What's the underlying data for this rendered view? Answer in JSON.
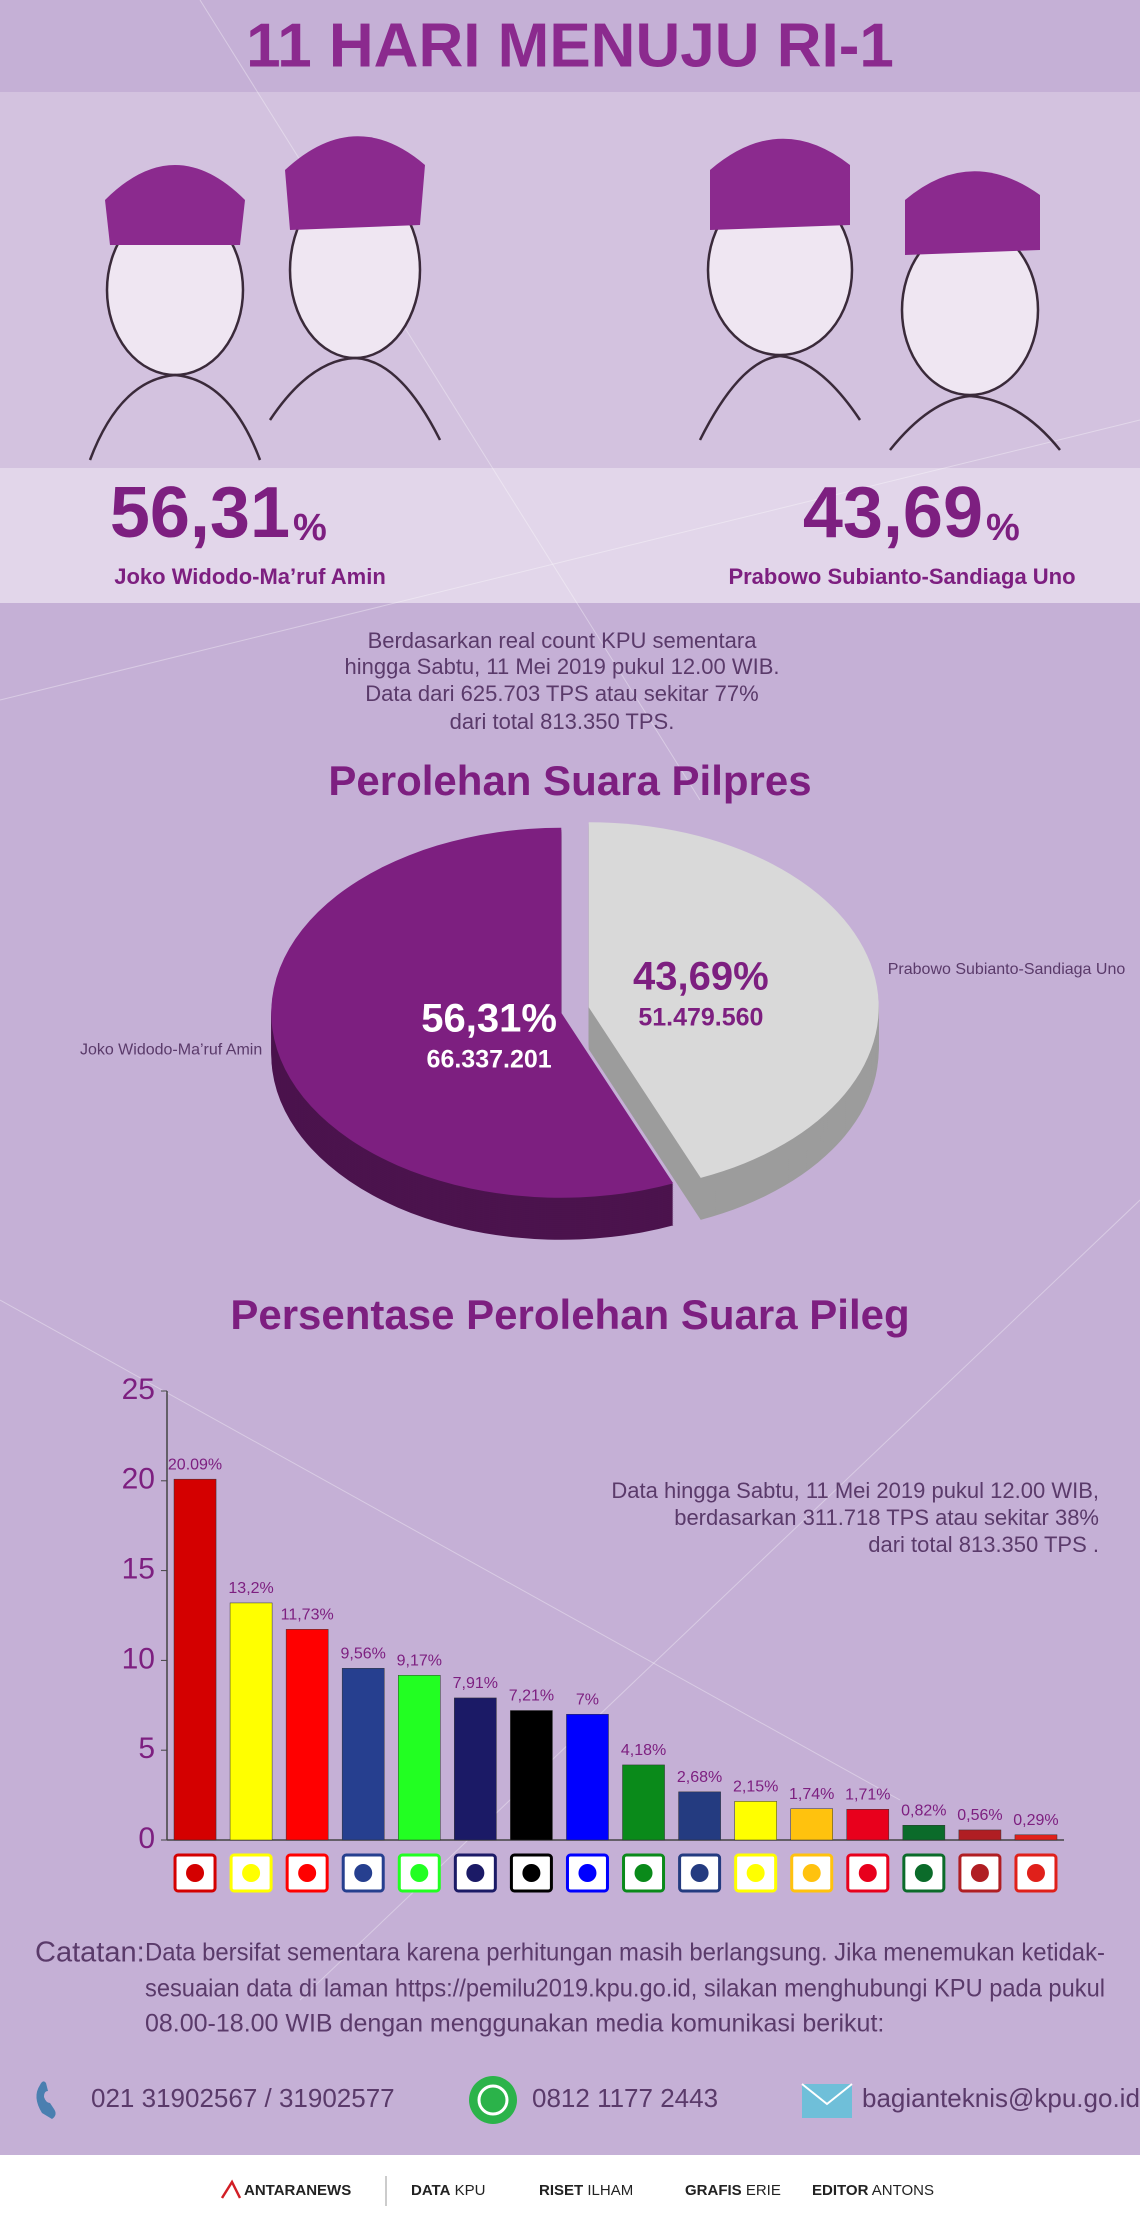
{
  "title": "11 HARI MENUJU RI-1",
  "candidates": [
    {
      "number": "56,31",
      "unit": "%",
      "name": "Joko Widodo-Ma’ruf Amin"
    },
    {
      "number": "43,69",
      "unit": "%",
      "name": "Prabowo Subianto-Sandiaga Uno"
    }
  ],
  "note": [
    "Berdasarkan real count KPU sementara",
    "hingga Sabtu, 11 Mei 2019 pukul 12.00 WIB.",
    "Data dari 625.703 TPS atau sekitar 77%",
    "dari total 813.350 TPS."
  ],
  "chart_data": [
    {
      "type": "pie",
      "title": "Perolehan Suara Pilpres",
      "categories": [
        "Joko Widodo-Ma’ruf Amin",
        "Prabowo Subianto-Sandiaga Uno"
      ],
      "values": [
        56.31,
        43.69
      ],
      "value_labels": [
        "56,31%",
        "43,69%"
      ],
      "votes": [
        66337201,
        51479560
      ],
      "vote_labels": [
        "66.337.201",
        "51.479.560"
      ],
      "colors": [
        "#7d1f80",
        "#d9d9d9"
      ]
    },
    {
      "type": "bar",
      "title": "Persentase Perolehan Suara Pileg",
      "categories": [
        null,
        null,
        null,
        null,
        null,
        null,
        null,
        null,
        null,
        null,
        null,
        null,
        null,
        null,
        null,
        null
      ],
      "values": [
        20.09,
        13.2,
        11.73,
        9.56,
        9.17,
        7.91,
        7.21,
        7,
        4.18,
        2.68,
        2.15,
        1.74,
        1.71,
        0.82,
        0.56,
        0.29
      ],
      "value_labels": [
        "20.09%",
        "13,2%",
        "11,73%",
        "9,56%",
        "9,17%",
        "7,91%",
        "7,21%",
        "7%",
        "4,18%",
        "2,68%",
        "2,15%",
        "1,74%",
        "1,71%",
        "0,82%",
        "0,56%",
        "0,29%"
      ],
      "colors": [
        "#d40000",
        "#ffff00",
        "#ff0000",
        "#263f8f",
        "#22ff22",
        "#1b1a66",
        "#000000",
        "#0000ff",
        "#0a8a1a",
        "#243b80",
        "#ffff00",
        "#ffc20e",
        "#e8001c",
        "#0b6b2a",
        "#b01e23",
        "#e0201a"
      ],
      "ylim": [
        0,
        25
      ],
      "yticks": [
        0,
        5,
        10,
        15,
        20,
        25
      ],
      "annotation": [
        "Data hingga Sabtu, 11 Mei 2019 pukul 12.00 WIB,",
        "berdasarkan 311.718 TPS atau sekitar 38%",
        "dari total 813.350 TPS ."
      ]
    }
  ],
  "catatan": {
    "label": "Catatan:",
    "lines": [
      "Data bersifat sementara karena perhitungan masih berlangsung. Jika menemukan ketidak-",
      "sesuaian data di laman https://pemilu2019.kpu.go.id, silakan menghubungi KPU pada pukul",
      "08.00-18.00 WIB dengan menggunakan media komunikasi berikut:"
    ]
  },
  "contacts": [
    "021 31902567 / 31902577",
    "0812 1177 2443",
    "bagianteknis@kpu.go.id"
  ],
  "credits": {
    "brand": "ANTARANEWS",
    "items": [
      {
        "role": "DATA",
        "name": "KPU"
      },
      {
        "role": "RISET",
        "name": "ILHAM"
      },
      {
        "role": "GRAFIS",
        "name": "ERIE"
      },
      {
        "role": "EDITOR",
        "name": "ANTONS"
      }
    ]
  }
}
